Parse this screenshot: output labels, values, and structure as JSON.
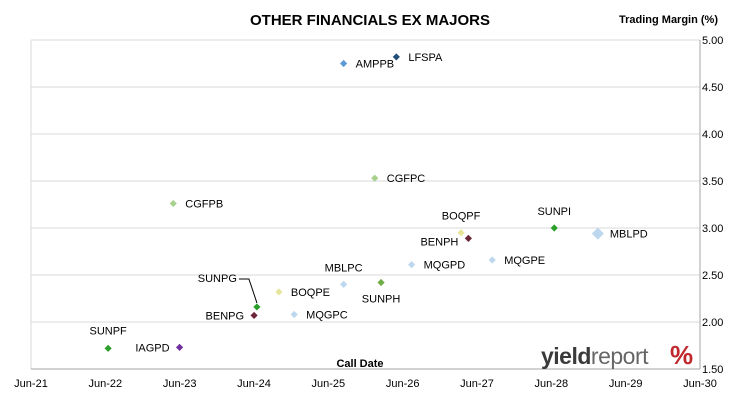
{
  "chart_data": {
    "type": "scatter",
    "title": "OTHER FINANCIALS EX MAJORS",
    "ylabel": "Trading Margin (%)",
    "xlabel": "Call Date",
    "xlim": [
      "2021-06-01",
      "2030-06-01"
    ],
    "ylim": [
      1.5,
      5.0
    ],
    "x_ticks": [
      "Jun-21",
      "Jun-22",
      "Jun-23",
      "Jun-24",
      "Jun-25",
      "Jun-26",
      "Jun-27",
      "Jun-28",
      "Jun-29",
      "Jun-30"
    ],
    "y_ticks": [
      "1.50",
      "2.00",
      "2.50",
      "3.00",
      "3.50",
      "4.00",
      "4.50",
      "5.00"
    ],
    "grid": "horizontal",
    "points": [
      {
        "label": "AMPPB",
        "x": "2025-08-15",
        "y": 4.75,
        "color": "#5b9bd5"
      },
      {
        "label": "LFSPA",
        "x": "2026-05-01",
        "y": 4.82,
        "color": "#1f4e79"
      },
      {
        "label": "CGFPC",
        "x": "2026-01-15",
        "y": 3.53,
        "color": "#a9d18e"
      },
      {
        "label": "CGFPB",
        "x": "2023-05-01",
        "y": 3.26,
        "color": "#a9d18e"
      },
      {
        "label": "SUNPI",
        "x": "2028-06-15",
        "y": 3.0,
        "color": "#2ca02c"
      },
      {
        "label": "MBLPD",
        "x": "2029-01-15",
        "y": 2.94,
        "color": "#bdd7ee"
      },
      {
        "label": "BOQPF",
        "x": "2027-03-15",
        "y": 2.95,
        "color": "#e6e69a"
      },
      {
        "label": "BENPH",
        "x": "2027-04-20",
        "y": 2.89,
        "color": "#6b2737"
      },
      {
        "label": "MBLPC",
        "x": "2025-08-15",
        "y": 2.4,
        "color": "#bdd7ee"
      },
      {
        "label": "SUNPH",
        "x": "2026-02-15",
        "y": 2.42,
        "color": "#70ad47"
      },
      {
        "label": "MQGPD",
        "x": "2026-07-15",
        "y": 2.61,
        "color": "#bdd7ee"
      },
      {
        "label": "MQGPE",
        "x": "2027-08-15",
        "y": 2.66,
        "color": "#bdd7ee"
      },
      {
        "label": "SUNPG",
        "x": "2024-06-15",
        "y": 2.16,
        "color": "#2ca02c"
      },
      {
        "label": "BOQPE",
        "x": "2024-10-01",
        "y": 2.32,
        "color": "#e6e69a"
      },
      {
        "label": "BENPG",
        "x": "2024-06-01",
        "y": 2.07,
        "color": "#6b2737"
      },
      {
        "label": "MQGPC",
        "x": "2024-12-15",
        "y": 2.08,
        "color": "#bdd7ee"
      },
      {
        "label": "SUNPF",
        "x": "2022-06-15",
        "y": 1.72,
        "color": "#2ca02c"
      },
      {
        "label": "IAGPD",
        "x": "2023-06-01",
        "y": 1.73,
        "color": "#7030a0"
      }
    ]
  },
  "logo": {
    "main": "yield",
    "light": "report",
    "pct": "%"
  }
}
